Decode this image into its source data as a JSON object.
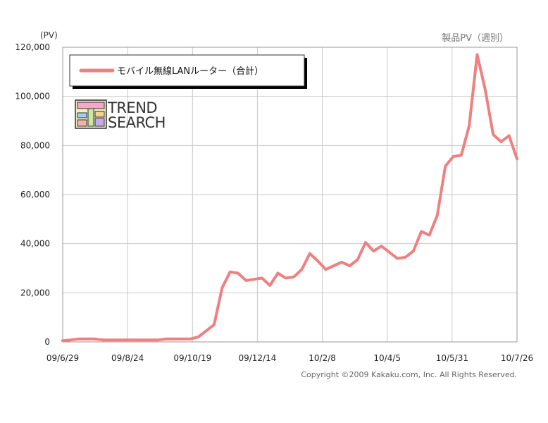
{
  "chart_data": {
    "type": "line",
    "unit_label": "(PV)",
    "title": "製品PV（週別）",
    "copyright": "Copyright ©2009 Kakaku.com, Inc. All Rights Reserved.",
    "logo": {
      "line1": "TREND",
      "line2": "SEARCH"
    },
    "ylim": [
      0,
      120000
    ],
    "y_ticks": [
      0,
      20000,
      40000,
      60000,
      80000,
      100000,
      120000
    ],
    "y_tick_labels": [
      "0",
      "20,000",
      "40,000",
      "60,000",
      "80,000",
      "100,000",
      "120,000"
    ],
    "x_tick_labels": [
      "09/6/29",
      "09/8/24",
      "09/10/19",
      "09/12/14",
      "10/2/8",
      "10/4/5",
      "10/5/31",
      "10/7/26"
    ],
    "legend": {
      "placement": "top-left"
    },
    "grid": true,
    "series": [
      {
        "name": "モバイル無線LANルーター（合計）",
        "color": "#f08080",
        "values": [
          500,
          800,
          1200,
          1200,
          1200,
          800,
          800,
          800,
          800,
          800,
          800,
          800,
          800,
          1200,
          1200,
          1200,
          1200,
          2000,
          4500,
          7000,
          22000,
          28500,
          28000,
          25000,
          25500,
          26000,
          23000,
          28000,
          26000,
          26500,
          29500,
          36000,
          33000,
          29500,
          31000,
          32500,
          31000,
          33500,
          40500,
          37000,
          39000,
          36500,
          34000,
          34500,
          37000,
          45000,
          43500,
          51500,
          71500,
          75500,
          76000,
          88000,
          117000,
          103000,
          84500,
          81500,
          84000,
          74500
        ]
      }
    ]
  }
}
